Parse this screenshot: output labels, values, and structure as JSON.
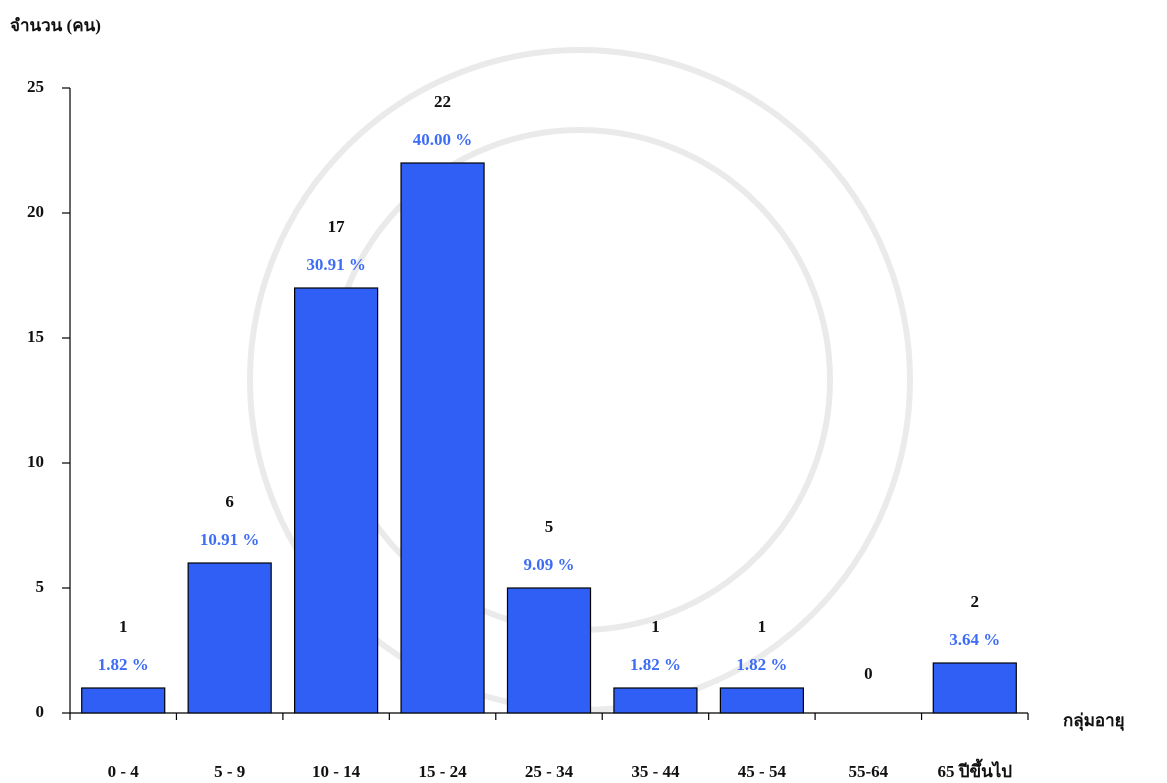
{
  "chart_data": {
    "type": "bar",
    "y_label": "จำนวน (คน)",
    "x_label": "กลุ่มอายุ",
    "categories": [
      "0 - 4",
      "5 - 9",
      "10 - 14",
      "15 - 24",
      "25 - 34",
      "35 - 44",
      "45 - 54",
      "55-64",
      "65 ปีขึ้นไป"
    ],
    "values": [
      1,
      6,
      17,
      22,
      5,
      1,
      1,
      0,
      2
    ],
    "percent_labels": [
      "1.82 %",
      "10.91 %",
      "30.91 %",
      "40.00 %",
      "9.09 %",
      "1.82 %",
      "1.82 %",
      null,
      "3.64 %"
    ],
    "color": "#2f5ff5",
    "ylim": [
      0,
      25
    ],
    "yticks": [
      0,
      5,
      10,
      15,
      20,
      25
    ]
  }
}
